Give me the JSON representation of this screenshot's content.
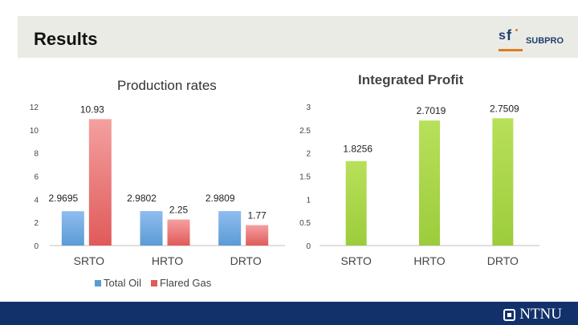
{
  "page": {
    "title": "Results"
  },
  "logo": {
    "text": "SUBPRO",
    "mark_letters": "sf"
  },
  "footer": {
    "brand": "NTNU"
  },
  "colors": {
    "total_oil": "#5b9bd5",
    "flared_gas": "#e05a5a",
    "profit": "#9ccc3c"
  },
  "chart_data": [
    {
      "type": "bar",
      "title": "Production rates",
      "categories": [
        "SRTO",
        "HRTO",
        "DRTO"
      ],
      "series": [
        {
          "name": "Total Oil",
          "values": [
            2.9695,
            2.9802,
            2.9809
          ],
          "labels": [
            "2.9695",
            "2.9802",
            "2.9809"
          ]
        },
        {
          "name": "Flared Gas",
          "values": [
            10.93,
            2.25,
            1.77
          ],
          "labels": [
            "10.93",
            "2.25",
            "1.77"
          ]
        }
      ],
      "ylim": [
        0,
        12
      ],
      "yticks": [
        "0",
        "2",
        "4",
        "6",
        "8",
        "10",
        "12"
      ],
      "legend": "bottom"
    },
    {
      "type": "bar",
      "title": "Integrated Profit",
      "categories": [
        "SRTO",
        "HRTO",
        "DRTO"
      ],
      "series": [
        {
          "name": "Integrated Profit",
          "values": [
            1.8256,
            2.7019,
            2.7509
          ],
          "labels": [
            "1.8256",
            "2.7019",
            "2.7509"
          ]
        }
      ],
      "ylim": [
        0,
        3
      ],
      "yticks": [
        "0",
        "0.5",
        "1",
        "1.5",
        "2",
        "2.5",
        "3"
      ]
    }
  ]
}
